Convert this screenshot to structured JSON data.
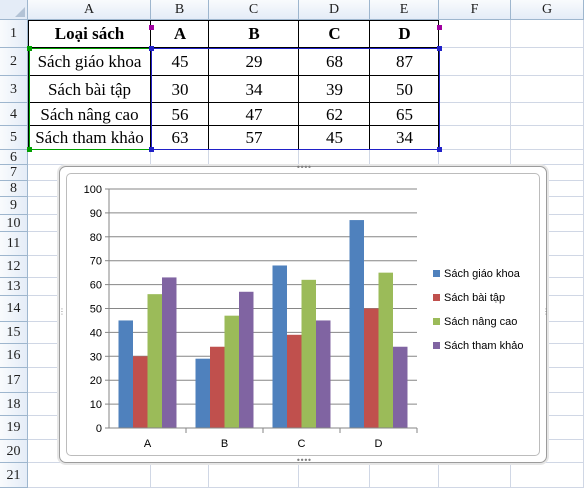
{
  "columns": [
    "A",
    "B",
    "C",
    "D",
    "E",
    "F",
    "G"
  ],
  "rows": [
    "1",
    "2",
    "3",
    "4",
    "5",
    "6",
    "7",
    "8",
    "9",
    "10",
    "11",
    "12",
    "13",
    "14",
    "15",
    "16",
    "17",
    "18",
    "19",
    "20",
    "21"
  ],
  "table": {
    "header": [
      "Loại sách",
      "A",
      "B",
      "C",
      "D"
    ],
    "rows": [
      [
        "Sách giáo khoa",
        "45",
        "29",
        "68",
        "87"
      ],
      [
        "Sách bài tập",
        "30",
        "34",
        "39",
        "50"
      ],
      [
        "Sách nâng cao",
        "56",
        "47",
        "62",
        "65"
      ],
      [
        "Sách tham khảo",
        "63",
        "57",
        "45",
        "34"
      ]
    ]
  },
  "colors": {
    "series": [
      "#4f81bd",
      "#c0504d",
      "#9bbb59",
      "#8064a2"
    ]
  },
  "chart_data": {
    "type": "bar",
    "categories": [
      "A",
      "B",
      "C",
      "D"
    ],
    "series": [
      {
        "name": "Sách giáo khoa",
        "values": [
          45,
          29,
          68,
          87
        ]
      },
      {
        "name": "Sách bài tập",
        "values": [
          30,
          34,
          39,
          50
        ]
      },
      {
        "name": "Sách nâng cao",
        "values": [
          56,
          47,
          62,
          65
        ]
      },
      {
        "name": "Sách tham khảo",
        "values": [
          63,
          57,
          45,
          34
        ]
      }
    ],
    "yticks": [
      "0",
      "10",
      "20",
      "30",
      "40",
      "50",
      "60",
      "70",
      "80",
      "90",
      "100"
    ],
    "ylim": [
      0,
      100
    ],
    "grid": true,
    "legend": "right"
  }
}
